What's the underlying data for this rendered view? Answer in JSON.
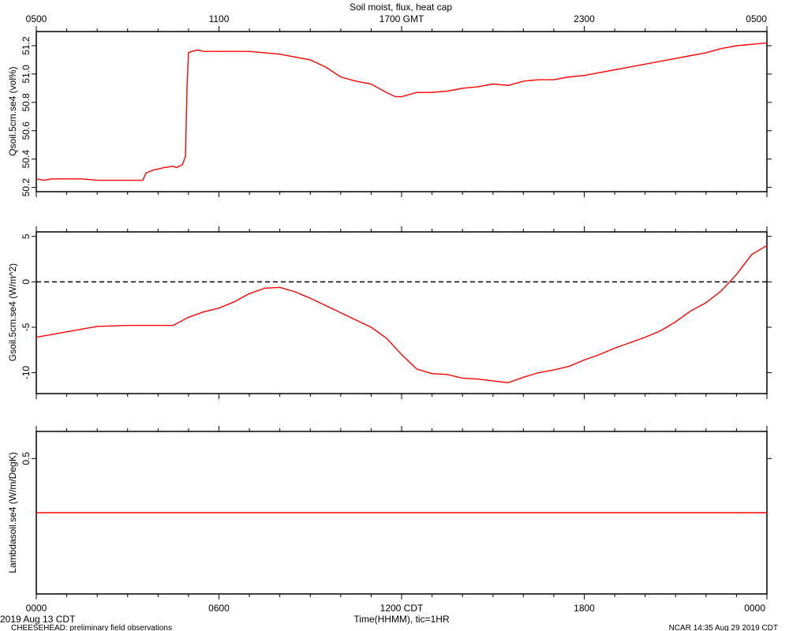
{
  "chart_data": {
    "type": "line",
    "title": "Soil moist, flux, heat cap",
    "x_units": "hours since 0000 CDT",
    "top_axis": {
      "label": "GMT",
      "tick_labels": [
        "0500",
        "1100",
        "1700 GMT",
        "2300",
        "0500"
      ]
    },
    "bottom_axis": {
      "xlabel": "Time(HHMM), tic=1HR",
      "tick_labels": [
        "0000",
        "0600",
        "1200 CDT",
        "1800",
        "0000"
      ]
    },
    "xlim": [
      0,
      24
    ],
    "panels": [
      {
        "ylabel": "Qsoil.5cm.se4 (vol%)",
        "ylim": [
          50.17,
          51.3
        ],
        "y_ticks": [
          50.2,
          50.4,
          50.6,
          50.8,
          51.0,
          51.2
        ],
        "y_tick_labels": [
          "50.2",
          "50.4",
          "50.6",
          "50.8",
          "51.0",
          "51.2"
        ],
        "series": [
          {
            "x": [
              0,
              0.25,
              0.5,
              1.0,
              1.5,
              2.0,
              2.5,
              3.0,
              3.5,
              3.6,
              3.8,
              4.2,
              4.5,
              4.6,
              4.8,
              4.9,
              4.95,
              5.0,
              5.1,
              5.3,
              5.5,
              6.0,
              6.5,
              7.0,
              7.5,
              8.0,
              8.5,
              9.0,
              9.5,
              10.0,
              10.5,
              11.0,
              11.5,
              11.8,
              12.0,
              12.5,
              13.0,
              13.5,
              14.0,
              14.5,
              15.0,
              15.5,
              16.0,
              16.5,
              17.0,
              17.5,
              18.0,
              18.5,
              19.0,
              19.5,
              20.0,
              20.5,
              21.0,
              21.5,
              22.0,
              22.5,
              23.0,
              23.5,
              24.0
            ],
            "y": [
              50.26,
              50.25,
              50.26,
              50.26,
              50.26,
              50.25,
              50.25,
              50.25,
              50.25,
              50.3,
              50.32,
              50.34,
              50.35,
              50.34,
              50.36,
              50.42,
              50.9,
              51.15,
              51.16,
              51.17,
              51.16,
              51.16,
              51.16,
              51.16,
              51.15,
              51.14,
              51.12,
              51.1,
              51.05,
              50.98,
              50.95,
              50.93,
              50.87,
              50.84,
              50.84,
              50.87,
              50.87,
              50.88,
              50.9,
              50.91,
              50.93,
              50.92,
              50.95,
              50.96,
              50.96,
              50.98,
              50.99,
              51.01,
              51.03,
              51.05,
              51.07,
              51.09,
              51.11,
              51.13,
              51.15,
              51.18,
              51.2,
              51.21,
              51.22
            ]
          }
        ]
      },
      {
        "ylabel": "Gsoil.5cm.se4 (W/m^2)",
        "ylim": [
          -12.3,
          5.5
        ],
        "y_ticks": [
          -10,
          -5,
          0,
          5
        ],
        "y_tick_labels": [
          "-10",
          "-5",
          "0",
          "5"
        ],
        "reference_line": 0,
        "series": [
          {
            "x": [
              0,
              1,
              2,
              3,
              4,
              4.5,
              5,
              5.5,
              6,
              6.5,
              7,
              7.5,
              8,
              8.5,
              9,
              9.5,
              10,
              10.5,
              11,
              11.5,
              12,
              12.5,
              13,
              13.5,
              14,
              14.5,
              15,
              15.5,
              16,
              16.5,
              17,
              17.5,
              18,
              18.5,
              19,
              19.5,
              20,
              20.5,
              21,
              21.5,
              22,
              22.5,
              23,
              23.5,
              24
            ],
            "y": [
              -6.1,
              -5.5,
              -4.9,
              -4.8,
              -4.8,
              -4.8,
              -3.9,
              -3.3,
              -2.9,
              -2.2,
              -1.3,
              -0.7,
              -0.6,
              -1.1,
              -1.8,
              -2.6,
              -3.4,
              -4.2,
              -5.0,
              -6.2,
              -8.0,
              -9.6,
              -10.1,
              -10.2,
              -10.6,
              -10.7,
              -10.9,
              -11.1,
              -10.5,
              -10.0,
              -9.7,
              -9.3,
              -8.6,
              -8.0,
              -7.3,
              -6.7,
              -6.1,
              -5.4,
              -4.4,
              -3.2,
              -2.3,
              -1.0,
              0.8,
              3.0,
              4.0
            ]
          }
        ]
      },
      {
        "ylabel": "Lambdasoil.se4 (W/m/DegK)",
        "ylim": [
          0,
          0.6
        ],
        "y_ticks": [
          0.5
        ],
        "y_tick_labels": [
          "0.5"
        ],
        "series": [
          {
            "x": [
              0,
              24
            ],
            "y": [
              0.3,
              0.3
            ]
          }
        ]
      }
    ]
  },
  "footer": {
    "date_left": "2019 Aug 13 CDT",
    "project": "CHEESEHEAD: preliminary field observations",
    "credit_right": "NCAR 14:35 Aug 29 2019 CDT"
  }
}
